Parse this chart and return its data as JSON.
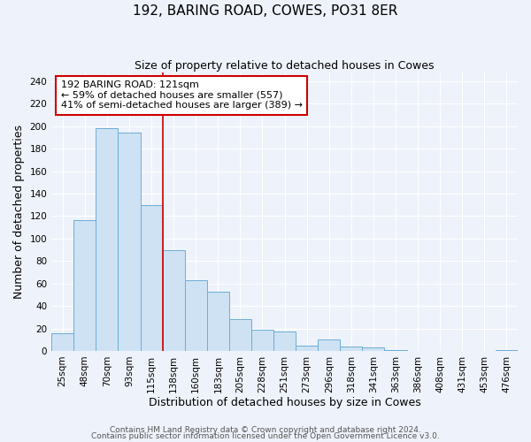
{
  "title": "192, BARING ROAD, COWES, PO31 8ER",
  "subtitle": "Size of property relative to detached houses in Cowes",
  "xlabel": "Distribution of detached houses by size in Cowes",
  "ylabel": "Number of detached properties",
  "bar_labels": [
    "25sqm",
    "48sqm",
    "70sqm",
    "93sqm",
    "115sqm",
    "138sqm",
    "160sqm",
    "183sqm",
    "205sqm",
    "228sqm",
    "251sqm",
    "273sqm",
    "296sqm",
    "318sqm",
    "341sqm",
    "363sqm",
    "386sqm",
    "408sqm",
    "431sqm",
    "453sqm",
    "476sqm"
  ],
  "bar_values": [
    16,
    116,
    198,
    194,
    130,
    90,
    63,
    53,
    28,
    19,
    17,
    5,
    10,
    4,
    3,
    1,
    0,
    0,
    0,
    0,
    1
  ],
  "bar_color": "#cfe2f3",
  "bar_edge_color": "#6aaed6",
  "vline_x": 4.5,
  "vline_color": "#cc0000",
  "ylim": [
    0,
    248
  ],
  "yticks": [
    0,
    20,
    40,
    60,
    80,
    100,
    120,
    140,
    160,
    180,
    200,
    220,
    240
  ],
  "annotation_title": "192 BARING ROAD: 121sqm",
  "annotation_line1": "← 59% of detached houses are smaller (557)",
  "annotation_line2": "41% of semi-detached houses are larger (389) →",
  "annotation_box_color": "#ffffff",
  "annotation_box_edge": "#cc0000",
  "footer1": "Contains HM Land Registry data © Crown copyright and database right 2024.",
  "footer2": "Contains public sector information licensed under the Open Government Licence v3.0.",
  "background_color": "#eef2fa",
  "grid_color": "#ffffff",
  "title_fontsize": 11,
  "subtitle_fontsize": 9,
  "axis_label_fontsize": 9,
  "tick_fontsize": 7.5,
  "annotation_fontsize": 8,
  "footer_fontsize": 6.5
}
